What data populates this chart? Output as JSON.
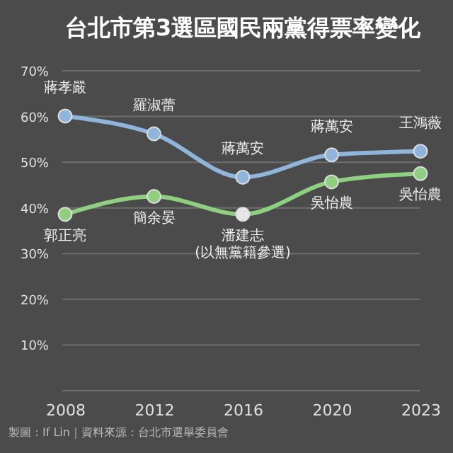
{
  "chart_data": {
    "type": "line",
    "title": "台北市第3選區國民兩黨得票率變化",
    "categories": [
      "2008",
      "2012",
      "2016",
      "2020",
      "2023"
    ],
    "series": [
      {
        "color": "#8fb5da",
        "values": [
          60.1,
          56.2,
          46.7,
          51.6,
          52.4
        ]
      },
      {
        "color": "#8fcf80",
        "colors": [
          "#8fcf80",
          "#8fcf80",
          "#e6e6e6",
          "#8fcf80",
          "#8fcf80"
        ],
        "values": [
          38.6,
          42.5,
          38.6,
          45.7,
          47.5
        ]
      }
    ],
    "ylim": [
      0,
      70
    ],
    "yticks": [
      {
        "value": 0,
        "label": null
      },
      {
        "value": 10,
        "label": "10%"
      },
      {
        "value": 20,
        "label": "20%"
      },
      {
        "value": 30,
        "label": "30%"
      },
      {
        "value": 40,
        "label": "40%"
      },
      {
        "value": 50,
        "label": "50%"
      },
      {
        "value": 60,
        "label": "60%"
      },
      {
        "value": 70,
        "label": "70%"
      }
    ],
    "grid": "y",
    "marker": "circle",
    "line_style": "solid",
    "annotations": [
      {
        "text": "蔣孝嚴",
        "x": "2008",
        "y": 60.1
      },
      {
        "text": "羅淑蕾",
        "x": "2012",
        "y": 56.2
      },
      {
        "text": "蔣萬安",
        "x": "2016",
        "y": 46.7
      },
      {
        "text": "蔣萬安",
        "x": "2020",
        "y": 51.6
      },
      {
        "text": "王鴻薇",
        "x": "2023",
        "y": 52.4
      },
      {
        "text": "郭正亮",
        "x": "2008",
        "y": 38.6
      },
      {
        "text": "簡余晏",
        "x": "2012",
        "y": 42.5
      },
      {
        "text": "潘建志\n(以無黨籍參選)",
        "x": "2016",
        "y": 38.6
      },
      {
        "text": "吳怡農",
        "x": "2020",
        "y": 45.7
      },
      {
        "text": "吳怡農",
        "x": "2023",
        "y": 47.5
      },
      "製圖：If Lin｜資料來源：台北市選舉委員會"
    ]
  }
}
